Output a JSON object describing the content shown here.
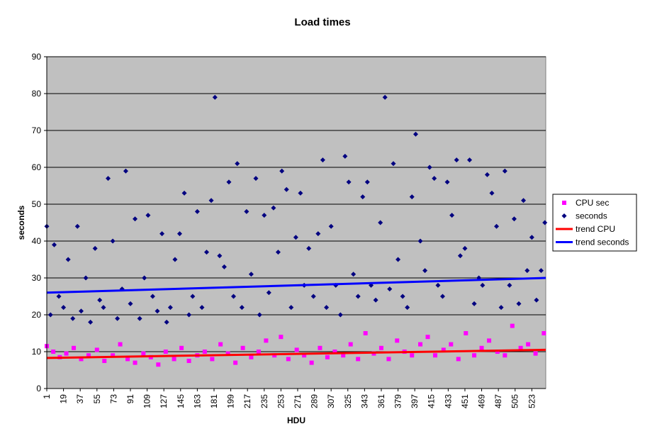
{
  "chart_data": {
    "type": "scatter",
    "title": "Load times",
    "xlabel": "HDU",
    "ylabel": "seconds",
    "xlim": [
      1,
      538
    ],
    "ylim": [
      0,
      90
    ],
    "y_ticks": [
      "0",
      "10",
      "20",
      "30",
      "40",
      "50",
      "60",
      "70",
      "80",
      "90"
    ],
    "x_ticks": [
      "1",
      "19",
      "37",
      "55",
      "73",
      "91",
      "109",
      "127",
      "145",
      "163",
      "181",
      "199",
      "217",
      "235",
      "253",
      "271",
      "289",
      "307",
      "325",
      "343",
      "361",
      "379",
      "397",
      "415",
      "433",
      "451",
      "469",
      "487",
      "505",
      "523"
    ],
    "grid": "horizontal-major",
    "background": "#c0c0c0",
    "legend": "right",
    "series": [
      {
        "name": "CPU sec",
        "kind": "points",
        "marker": "square",
        "color": "#ff00ff",
        "x": [
          1,
          8,
          15,
          22,
          30,
          38,
          46,
          55,
          63,
          72,
          80,
          88,
          96,
          105,
          113,
          121,
          129,
          138,
          146,
          154,
          163,
          171,
          179,
          188,
          196,
          204,
          212,
          221,
          229,
          237,
          246,
          253,
          261,
          270,
          278,
          286,
          295,
          303,
          311,
          320,
          328,
          336,
          344,
          353,
          361,
          369,
          378,
          386,
          394,
          403,
          411,
          419,
          428,
          436,
          444,
          452,
          461,
          469,
          477,
          486,
          494,
          502,
          511,
          519,
          527,
          536
        ],
        "y": [
          11.5,
          10,
          8.5,
          9.5,
          11,
          8,
          9,
          10.5,
          7.5,
          9,
          12,
          8,
          7,
          9.5,
          8.5,
          6.5,
          10,
          8,
          11,
          7.5,
          9,
          10,
          8,
          12,
          9.5,
          7,
          11,
          8.5,
          10,
          13,
          9,
          14,
          8,
          10.5,
          9,
          7,
          11,
          8.5,
          10,
          9,
          12,
          8,
          15,
          9.5,
          11,
          8,
          13,
          10,
          9,
          12,
          14,
          9,
          10.5,
          12,
          8,
          15,
          9,
          11,
          13,
          10,
          9,
          17,
          11,
          12,
          9.5,
          15
        ]
      },
      {
        "name": "seconds",
        "kind": "points",
        "marker": "diamond",
        "color": "#000080",
        "x": [
          1,
          5,
          9,
          14,
          19,
          24,
          29,
          34,
          38,
          43,
          48,
          53,
          58,
          62,
          67,
          72,
          77,
          82,
          86,
          91,
          96,
          101,
          106,
          110,
          115,
          120,
          125,
          130,
          134,
          139,
          144,
          149,
          154,
          158,
          163,
          168,
          173,
          178,
          182,
          187,
          192,
          197,
          202,
          206,
          211,
          216,
          221,
          226,
          230,
          235,
          240,
          245,
          250,
          254,
          259,
          264,
          269,
          274,
          278,
          283,
          288,
          293,
          298,
          302,
          307,
          312,
          317,
          322,
          326,
          331,
          336,
          341,
          346,
          350,
          355,
          360,
          365,
          370,
          374,
          379,
          384,
          389,
          394,
          398,
          403,
          408,
          413,
          418,
          422,
          427,
          432,
          437,
          442,
          446,
          451,
          456,
          461,
          466,
          470,
          475,
          480,
          485,
          490,
          494,
          499,
          504,
          509,
          514,
          518,
          523,
          528,
          533,
          537
        ],
        "y": [
          44,
          20,
          39,
          25,
          22,
          35,
          19,
          44,
          21,
          30,
          18,
          38,
          24,
          22,
          57,
          40,
          19,
          27,
          59,
          23,
          46,
          19,
          30,
          47,
          25,
          21,
          42,
          18,
          22,
          35,
          42,
          53,
          20,
          25,
          48,
          22,
          37,
          51,
          79,
          36,
          33,
          56,
          25,
          61,
          22,
          48,
          31,
          57,
          20,
          47,
          26,
          49,
          37,
          59,
          54,
          22,
          41,
          53,
          28,
          38,
          25,
          42,
          62,
          22,
          44,
          28,
          20,
          63,
          56,
          31,
          25,
          52,
          56,
          28,
          24,
          45,
          79,
          27,
          61,
          35,
          25,
          22,
          52,
          69,
          40,
          32,
          60,
          57,
          28,
          25,
          56,
          47,
          62,
          36,
          38,
          62,
          23,
          30,
          28,
          58,
          53,
          44,
          22,
          59,
          28,
          46,
          23,
          51,
          32,
          41,
          24,
          32,
          45
        ]
      },
      {
        "name": "trend CPU",
        "kind": "line",
        "color": "#ff0000",
        "x": [
          1,
          538
        ],
        "y": [
          8.3,
          10.5
        ]
      },
      {
        "name": "trend seconds",
        "kind": "line",
        "color": "#0000ff",
        "x": [
          1,
          538
        ],
        "y": [
          26,
          30
        ]
      }
    ]
  }
}
